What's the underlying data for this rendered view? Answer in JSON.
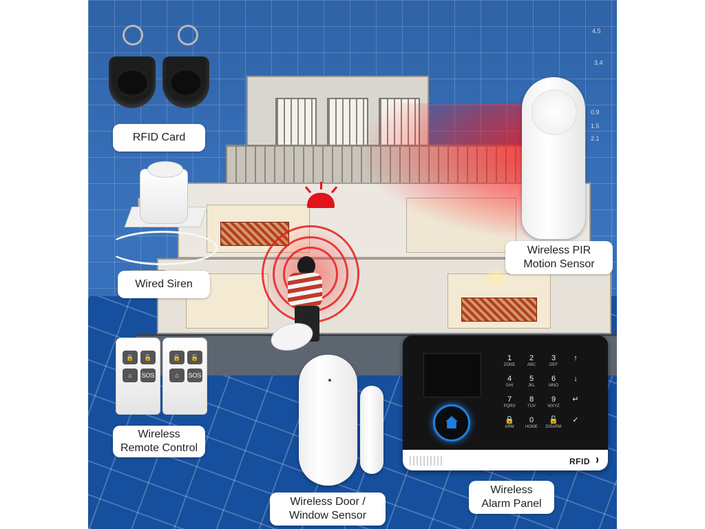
{
  "labels": {
    "rfid_card": "RFID Card",
    "wired_siren": "Wired Siren",
    "wireless_pir_line1": "Wireless PIR",
    "wireless_pir_line2": "Motion Sensor",
    "remote_line1": "Wireless",
    "remote_line2": "Remote Control",
    "door_line1": "Wireless Door /",
    "door_line2": "Window Sensor",
    "panel_line1": "Wireless",
    "panel_line2": "Alarm Panel"
  },
  "panel": {
    "brand_mark": "RFID",
    "keys": [
      {
        "main": "1",
        "sub": "ZONE"
      },
      {
        "main": "2",
        "sub": "ABC"
      },
      {
        "main": "3",
        "sub": "DEF"
      },
      {
        "main": "↑",
        "sub": ""
      },
      {
        "main": "4",
        "sub": "GHI"
      },
      {
        "main": "5",
        "sub": "JKL"
      },
      {
        "main": "6",
        "sub": "MNO"
      },
      {
        "main": "↓",
        "sub": ""
      },
      {
        "main": "7",
        "sub": "PQRS"
      },
      {
        "main": "8",
        "sub": "TUV"
      },
      {
        "main": "9",
        "sub": "WXYZ"
      },
      {
        "main": "↵",
        "sub": ""
      },
      {
        "main": "🔒",
        "sub": "ARM"
      },
      {
        "main": "0",
        "sub": "HOME"
      },
      {
        "main": "🔓",
        "sub": "DISARM"
      },
      {
        "main": "✓",
        "sub": ""
      }
    ]
  },
  "remote": {
    "sos_label": "SOS"
  },
  "blueprint_dims": [
    "4.5",
    "3.4",
    "0.9",
    "1.5",
    "2.1"
  ],
  "colors": {
    "blueprint_blue": "#2f63a8",
    "alarm_red": "#e3131a",
    "panel_accent": "#1e7fe0"
  }
}
